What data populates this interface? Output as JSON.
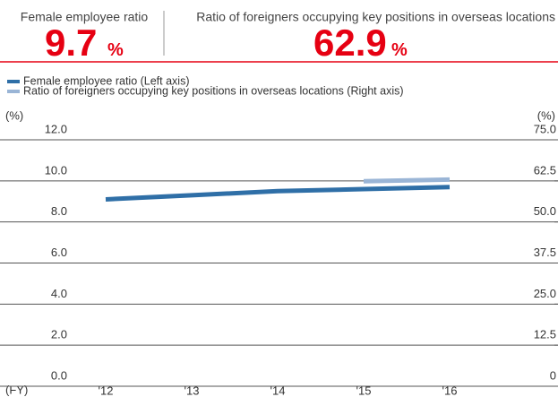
{
  "header": {
    "kpis": [
      {
        "label": "Female employee ratio",
        "value": "9.7",
        "unit": "%"
      },
      {
        "label": "Ratio of foreigners occupying key positions in overseas locations",
        "value": "62.9",
        "unit": "%"
      }
    ]
  },
  "chart_data": {
    "type": "line",
    "categories": [
      "'12",
      "'13",
      "'14",
      "'15",
      "'16"
    ],
    "x_label": "(FY)",
    "y_label": "(%)",
    "y2_label": "(%)",
    "ylim": [
      0,
      12
    ],
    "yticks": [
      {
        "value": 0,
        "label": "0.0"
      },
      {
        "value": 2,
        "label": "2.0"
      },
      {
        "value": 4,
        "label": "4.0"
      },
      {
        "value": 6,
        "label": "6.0"
      },
      {
        "value": 8,
        "label": "8.0"
      },
      {
        "value": 10,
        "label": "10.0"
      },
      {
        "value": 12,
        "label": "12.0"
      }
    ],
    "y2lim": [
      0,
      75
    ],
    "y2ticks": [
      0,
      12.5,
      {
        "value": 25,
        "label": "25.0"
      },
      37.5,
      {
        "value": 50,
        "label": "50.0"
      },
      62.5,
      {
        "value": 75,
        "label": "75.0"
      }
    ],
    "grid": true,
    "series": [
      {
        "name": "Female employee ratio (Left axis)",
        "color": "#2f6fa7",
        "values": [
          9.1,
          9.3,
          9.5,
          9.6,
          9.7
        ]
      },
      {
        "name": "Ratio of foreigners occupying key positions in overseas locations (Right axis)",
        "color": "#9ab5d6",
        "axis": "y2",
        "values": [
          null,
          null,
          null,
          62.4,
          62.9
        ]
      }
    ]
  }
}
